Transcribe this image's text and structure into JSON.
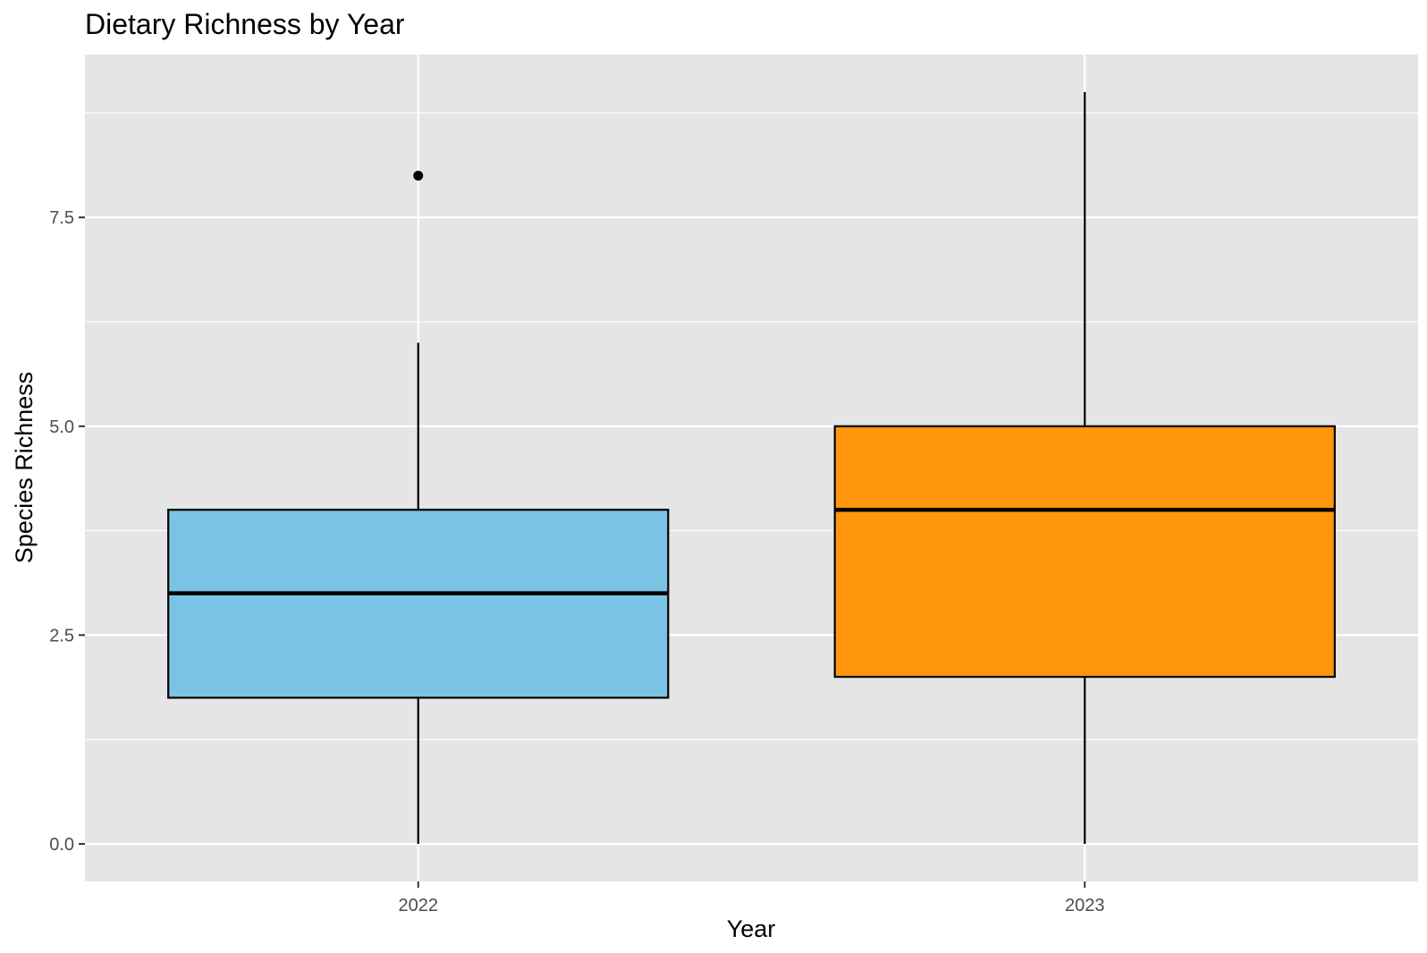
{
  "chart_data": {
    "type": "box",
    "title": "Dietary Richness by Year",
    "xlabel": "Year",
    "ylabel": "Species Richness",
    "ylim": [
      -0.45,
      9.45
    ],
    "yticks": [
      "0.0",
      "2.5",
      "5.0",
      "7.5"
    ],
    "grid": true,
    "legend": "none",
    "categories": [
      "2022",
      "2023"
    ],
    "boxes": [
      {
        "category": "2022",
        "min": 0,
        "q1": 1.75,
        "median": 3,
        "q3": 4,
        "max": 6,
        "outliers": [
          8
        ],
        "color": "#7AC3E5"
      },
      {
        "category": "2023",
        "min": 0,
        "q1": 2,
        "median": 4,
        "q3": 5,
        "max": 9,
        "outliers": [],
        "color": "#FF960E"
      }
    ]
  }
}
